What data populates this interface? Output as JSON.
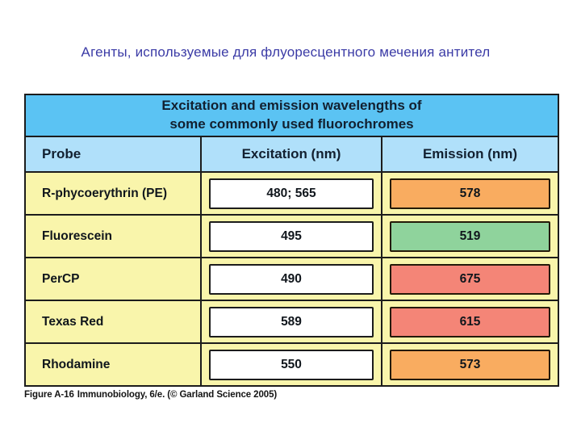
{
  "slide": {
    "title": "Агенты, используемые для флуоресцентного мечения антител",
    "title_color": "#3b3ba6"
  },
  "table": {
    "title_line1": "Excitation and emission wavelengths of",
    "title_line2": "some commonly used fluorochromes",
    "columns": {
      "probe": "Probe",
      "excitation": "Excitation (nm)",
      "emission": "Emission (nm)"
    },
    "rows": [
      {
        "probe": "R-phycoerythrin (PE)",
        "excitation": "480; 565",
        "emission": "578",
        "emission_color": "#f9ac60"
      },
      {
        "probe": "Fluorescein",
        "excitation": "495",
        "emission": "519",
        "emission_color": "#8fd39c"
      },
      {
        "probe": "PerCP",
        "excitation": "490",
        "emission": "675",
        "emission_color": "#f48577"
      },
      {
        "probe": "Texas Red",
        "excitation": "589",
        "emission": "615",
        "emission_color": "#f48577"
      },
      {
        "probe": "Rhodamine",
        "excitation": "550",
        "emission": "573",
        "emission_color": "#f9ac60"
      }
    ],
    "colors": {
      "header_bg": "#5bc3f3",
      "subheader_bg": "#b0e0fa",
      "row_bg": "#f9f5ab",
      "excitation_box_bg": "#ffffff",
      "border": "#1c1c1c"
    }
  },
  "caption": {
    "figure_label": "Figure A-16",
    "source": "Immunobiology, 6/e. (© Garland Science 2005)"
  },
  "chart_data": {
    "type": "table",
    "title": "Excitation and emission wavelengths of some commonly used fluorochromes",
    "columns": [
      "Probe",
      "Excitation (nm)",
      "Emission (nm)"
    ],
    "rows": [
      [
        "R-phycoerythrin (PE)",
        "480; 565",
        "578"
      ],
      [
        "Fluorescein",
        "495",
        "519"
      ],
      [
        "PerCP",
        "490",
        "675"
      ],
      [
        "Texas Red",
        "589",
        "615"
      ],
      [
        "Rhodamine",
        "550",
        "573"
      ]
    ]
  }
}
